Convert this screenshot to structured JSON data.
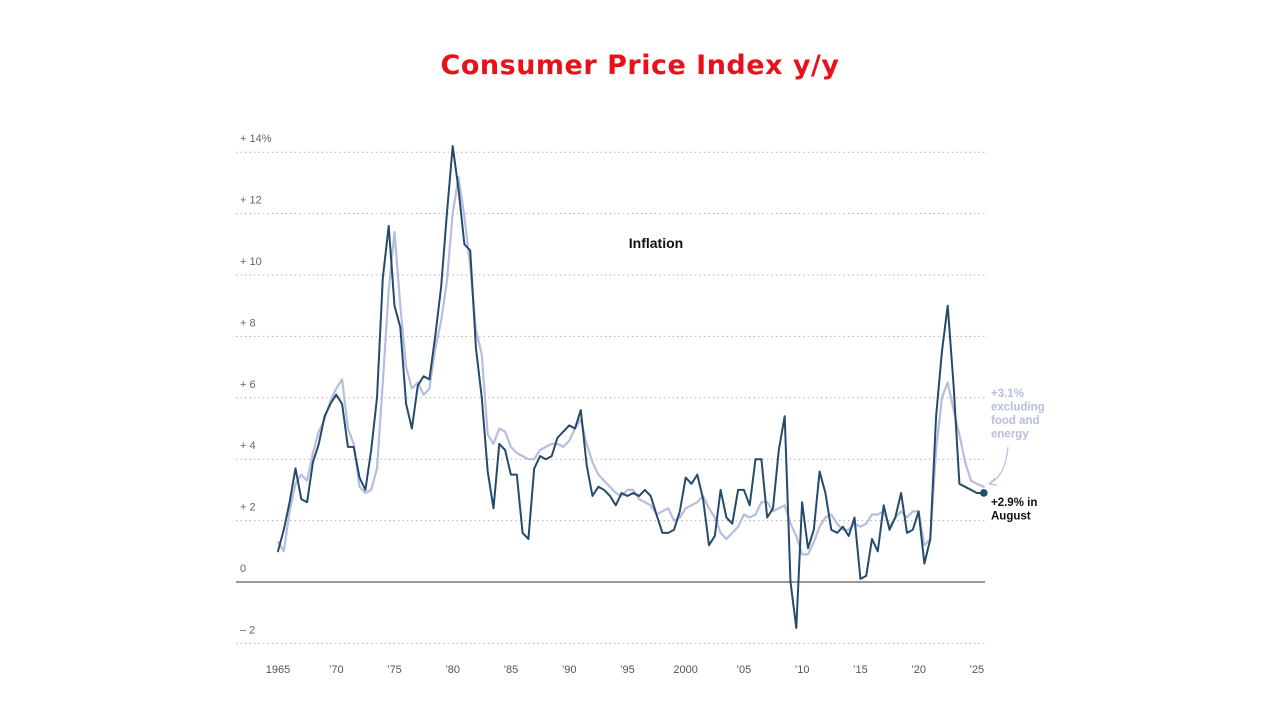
{
  "title": "Consumer Price Index y/y",
  "chart_data": {
    "type": "line",
    "title": "Consumer Price Index y/y",
    "subtitle": "Inflation",
    "xlabel": "",
    "ylabel": "",
    "xlim": [
      1965,
      2025.7
    ],
    "ylim": [
      -2,
      14.5
    ],
    "y_ticks": [
      {
        "value": 14,
        "label": "+ 14%"
      },
      {
        "value": 12,
        "label": "+ 12"
      },
      {
        "value": 10,
        "label": "+ 10"
      },
      {
        "value": 8,
        "label": "+ 8"
      },
      {
        "value": 6,
        "label": "+ 6"
      },
      {
        "value": 4,
        "label": "+ 4"
      },
      {
        "value": 2,
        "label": "+ 2"
      },
      {
        "value": 0,
        "label": "0"
      },
      {
        "value": -2,
        "label": "– 2"
      }
    ],
    "x_ticks": [
      {
        "value": 1965,
        "label": "1965"
      },
      {
        "value": 1970,
        "label": "’70"
      },
      {
        "value": 1975,
        "label": "’75"
      },
      {
        "value": 1980,
        "label": "’80"
      },
      {
        "value": 1985,
        "label": "’85"
      },
      {
        "value": 1990,
        "label": "’90"
      },
      {
        "value": 1995,
        "label": "’95"
      },
      {
        "value": 2000,
        "label": "2000"
      },
      {
        "value": 2005,
        "label": "’05"
      },
      {
        "value": 2010,
        "label": "’10"
      },
      {
        "value": 2015,
        "label": "’15"
      },
      {
        "value": 2020,
        "label": "’20"
      },
      {
        "value": 2025,
        "label": "’25"
      }
    ],
    "grid": true,
    "legend": "none",
    "series": [
      {
        "color": "#b7bde0",
        "x": [
          1965,
          1965.5,
          1966,
          1966.5,
          1967,
          1967.5,
          1968,
          1968.5,
          1969,
          1969.5,
          1970,
          1970.5,
          1971,
          1971.5,
          1972,
          1972.5,
          1973,
          1973.5,
          1974,
          1974.5,
          1975,
          1975.5,
          1976,
          1976.5,
          1977,
          1977.5,
          1978,
          1978.5,
          1979,
          1979.5,
          1980,
          1980.5,
          1981,
          1981.5,
          1982,
          1982.5,
          1983,
          1983.5,
          1984,
          1984.5,
          1985,
          1985.5,
          1986,
          1986.5,
          1987,
          1987.5,
          1988,
          1988.5,
          1989,
          1989.5,
          1990,
          1990.5,
          1991,
          1991.5,
          1992,
          1992.5,
          1993,
          1993.5,
          1994,
          1994.5,
          1995,
          1995.5,
          1996,
          1996.5,
          1997,
          1997.5,
          1998,
          1998.5,
          1999,
          1999.5,
          2000,
          2000.5,
          2001,
          2001.5,
          2002,
          2002.5,
          2003,
          2003.5,
          2004,
          2004.5,
          2005,
          2005.5,
          2006,
          2006.5,
          2007,
          2007.5,
          2008,
          2008.5,
          2009,
          2009.5,
          2010,
          2010.5,
          2011,
          2011.5,
          2012,
          2012.5,
          2013,
          2013.5,
          2014,
          2014.5,
          2015,
          2015.5,
          2016,
          2016.5,
          2017,
          2017.5,
          2018,
          2018.5,
          2019,
          2019.5,
          2020,
          2020.5,
          2021,
          2021.5,
          2022,
          2022.5,
          2023,
          2023.5,
          2024,
          2024.5,
          2025,
          2025.6
        ],
        "y": [
          1.3,
          1.0,
          2.3,
          3.2,
          3.5,
          3.3,
          4.2,
          4.9,
          5.3,
          5.9,
          6.3,
          6.6,
          5.0,
          4.5,
          3.1,
          2.9,
          3.0,
          3.7,
          6.5,
          9.5,
          11.4,
          9.0,
          7.0,
          6.3,
          6.5,
          6.1,
          6.3,
          7.6,
          8.5,
          9.8,
          12.0,
          13.2,
          11.9,
          10.3,
          8.2,
          7.4,
          4.8,
          4.5,
          5.0,
          4.9,
          4.4,
          4.2,
          4.1,
          4.0,
          4.0,
          4.3,
          4.4,
          4.5,
          4.5,
          4.4,
          4.6,
          5.0,
          5.3,
          4.5,
          3.9,
          3.5,
          3.3,
          3.1,
          2.9,
          2.8,
          3.0,
          3.0,
          2.7,
          2.6,
          2.5,
          2.2,
          2.3,
          2.4,
          2.0,
          2.1,
          2.4,
          2.5,
          2.6,
          2.8,
          2.4,
          2.1,
          1.6,
          1.4,
          1.6,
          1.8,
          2.2,
          2.1,
          2.2,
          2.6,
          2.6,
          2.3,
          2.4,
          2.5,
          1.9,
          1.5,
          0.9,
          0.9,
          1.3,
          1.8,
          2.1,
          2.2,
          1.9,
          1.7,
          1.7,
          1.9,
          1.8,
          1.9,
          2.2,
          2.2,
          2.3,
          1.8,
          2.1,
          2.3,
          2.1,
          2.3,
          2.3,
          1.2,
          1.4,
          4.3,
          6.0,
          6.5,
          5.6,
          4.8,
          3.9,
          3.3,
          3.2,
          3.1
        ]
      },
      {
        "color": "#254b6b",
        "x": [
          1965,
          1965.5,
          1966,
          1966.5,
          1967,
          1967.5,
          1968,
          1968.5,
          1969,
          1969.5,
          1970,
          1970.5,
          1971,
          1971.5,
          1972,
          1972.5,
          1973,
          1973.5,
          1974,
          1974.5,
          1975,
          1975.5,
          1976,
          1976.5,
          1977,
          1977.5,
          1978,
          1978.5,
          1979,
          1979.5,
          1980,
          1980.5,
          1981,
          1981.5,
          1982,
          1982.5,
          1983,
          1983.5,
          1984,
          1984.5,
          1985,
          1985.5,
          1986,
          1986.5,
          1987,
          1987.5,
          1988,
          1988.5,
          1989,
          1989.5,
          1990,
          1990.5,
          1991,
          1991.5,
          1992,
          1992.5,
          1993,
          1993.5,
          1994,
          1994.5,
          1995,
          1995.5,
          1996,
          1996.5,
          1997,
          1997.5,
          1998,
          1998.5,
          1999,
          1999.5,
          2000,
          2000.5,
          2001,
          2001.5,
          2002,
          2002.5,
          2003,
          2003.5,
          2004,
          2004.5,
          2005,
          2005.5,
          2006,
          2006.5,
          2007,
          2007.5,
          2008,
          2008.5,
          2009,
          2009.5,
          2010,
          2010.5,
          2011,
          2011.5,
          2012,
          2012.5,
          2013,
          2013.5,
          2014,
          2014.5,
          2015,
          2015.5,
          2016,
          2016.5,
          2017,
          2017.5,
          2018,
          2018.5,
          2019,
          2019.5,
          2020,
          2020.5,
          2021,
          2021.5,
          2022,
          2022.5,
          2023,
          2023.5,
          2024,
          2024.5,
          2025,
          2025.6
        ],
        "y": [
          1.0,
          1.7,
          2.6,
          3.7,
          2.7,
          2.6,
          3.9,
          4.5,
          5.4,
          5.8,
          6.1,
          5.8,
          4.4,
          4.4,
          3.4,
          3.0,
          4.3,
          6.0,
          9.9,
          11.6,
          9.0,
          8.3,
          5.8,
          5.0,
          6.4,
          6.7,
          6.6,
          8.0,
          9.6,
          12.0,
          14.2,
          12.8,
          11.0,
          10.8,
          7.6,
          6.0,
          3.6,
          2.4,
          4.5,
          4.3,
          3.5,
          3.5,
          1.6,
          1.4,
          3.7,
          4.1,
          4.0,
          4.1,
          4.7,
          4.9,
          5.1,
          5.0,
          5.6,
          3.8,
          2.8,
          3.1,
          3.0,
          2.8,
          2.5,
          2.9,
          2.8,
          2.9,
          2.8,
          3.0,
          2.8,
          2.2,
          1.6,
          1.6,
          1.7,
          2.3,
          3.4,
          3.2,
          3.5,
          2.7,
          1.2,
          1.5,
          3.0,
          2.1,
          1.9,
          3.0,
          3.0,
          2.5,
          4.0,
          4.0,
          2.1,
          2.4,
          4.3,
          5.4,
          0.0,
          -1.5,
          2.6,
          1.1,
          1.7,
          3.6,
          2.9,
          1.7,
          1.6,
          1.8,
          1.5,
          2.1,
          0.1,
          0.2,
          1.4,
          1.0,
          2.5,
          1.7,
          2.1,
          2.9,
          1.6,
          1.7,
          2.3,
          0.6,
          1.4,
          5.4,
          7.5,
          9.0,
          6.4,
          3.2,
          3.1,
          3.0,
          2.9,
          2.9
        ]
      }
    ],
    "annotations": {
      "inflation_label": "Inflation",
      "core_lines": [
        "+3.1%",
        "excluding",
        "food and",
        "energy"
      ],
      "headline_lines": [
        "+2.9% in",
        "August"
      ],
      "core_end_value": 3.1,
      "headline_end_value": 2.9
    }
  }
}
